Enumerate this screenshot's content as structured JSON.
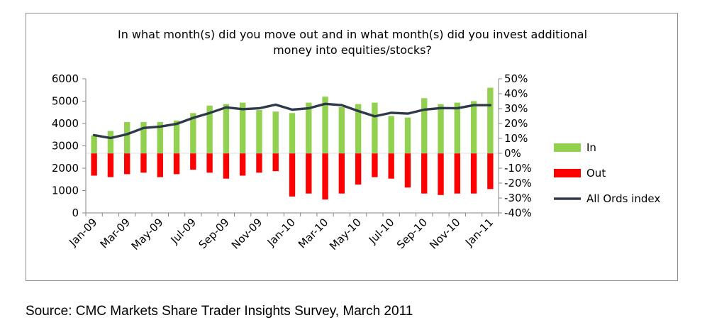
{
  "chart_data": {
    "type": "bar",
    "title": [
      "In what month(s) did you move out and in what month(s) did you invest  additional",
      "money into equities/stocks?"
    ],
    "categories": [
      "Jan-09",
      "Feb-09",
      "Mar-09",
      "Apr-09",
      "May-09",
      "Jun-09",
      "Jul-09",
      "Aug-09",
      "Sep-09",
      "Oct-09",
      "Nov-09",
      "Dec-09",
      "Jan-10",
      "Feb-10",
      "Mar-10",
      "Apr-10",
      "May-10",
      "Jun-10",
      "Jul-10",
      "Aug-10",
      "Sep-10",
      "Oct-10",
      "Nov-10",
      "Dec-10",
      "Jan-11"
    ],
    "x_tick_labels": [
      "Jan-09",
      "Mar-09",
      "May-09",
      "Jul-09",
      "Sep-09",
      "Nov-09",
      "Jan-10",
      "Mar-10",
      "May-10",
      "Jul-10",
      "Sep-10",
      "Nov-10",
      "Jan-11"
    ],
    "left_axis": {
      "ylim": [
        0,
        6000
      ],
      "ticks": [
        "0",
        "1000",
        "2000",
        "3000",
        "4000",
        "5000",
        "6000"
      ]
    },
    "right_axis": {
      "ylim": [
        -40,
        50
      ],
      "ticks": [
        "-40%",
        "-30%",
        "-20%",
        "-10%",
        "0%",
        "10%",
        "20%",
        "30%",
        "40%",
        "50%"
      ]
    },
    "series": [
      {
        "name": "In",
        "type": "bar",
        "axis": "right",
        "color": "#92d050",
        "values": [
          12,
          15,
          21,
          21,
          21,
          22,
          27,
          32,
          33,
          34,
          29,
          28,
          27,
          34,
          38,
          31,
          33,
          34,
          25,
          24,
          37,
          33,
          34,
          35,
          44
        ]
      },
      {
        "name": "Out",
        "type": "bar",
        "axis": "right",
        "color": "#ff0000",
        "values": [
          -15,
          -16,
          -14,
          -13,
          -16,
          -14,
          -11,
          -13,
          -17,
          -15,
          -13,
          -12,
          -29,
          -27,
          -31,
          -27,
          -21,
          -16,
          -17,
          -23,
          -27,
          -28,
          -27,
          -27,
          -24
        ]
      },
      {
        "name": "All Ords index",
        "type": "line",
        "axis": "left",
        "color": "#2e3a4a",
        "values": [
          3480,
          3350,
          3520,
          3800,
          3860,
          3980,
          4250,
          4470,
          4720,
          4640,
          4680,
          4840,
          4620,
          4680,
          4880,
          4820,
          4560,
          4320,
          4480,
          4440,
          4620,
          4690,
          4680,
          4820,
          4820
        ]
      }
    ],
    "legend": {
      "position": "right",
      "entries": [
        "In",
        "Out",
        "All Ords index"
      ]
    },
    "grid": false
  },
  "source": "Source: CMC Markets Share Trader Insights Survey, March 2011"
}
